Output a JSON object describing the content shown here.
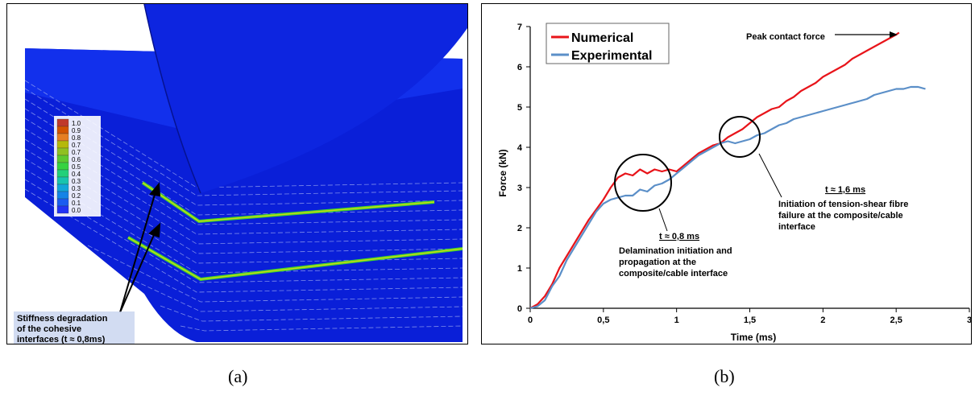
{
  "captions": {
    "a": "(a)",
    "b": "(b)"
  },
  "panel_a": {
    "legend_values": [
      "1.0",
      "0.9",
      "0.8",
      "0.7",
      "0.7",
      "0.6",
      "0.5",
      "0.4",
      "0.3",
      "0.3",
      "0.2",
      "0.1",
      "0.0"
    ],
    "legend_colors": [
      "#c0392b",
      "#d35400",
      "#e67e22",
      "#b5b80a",
      "#8fc021",
      "#5dc930",
      "#36d240",
      "#22d07a",
      "#18c4ae",
      "#12a6d8",
      "#1583e6",
      "#1b5cf0",
      "#2233f5"
    ],
    "annotation": [
      "Stiffness degradation",
      "of the cohesive",
      "interfaces (t ≈ 0,8ms)"
    ]
  },
  "chart_data": {
    "type": "line",
    "xlabel": "Time (ms)",
    "ylabel": "Force (kN)",
    "xlim": [
      0,
      3
    ],
    "ylim": [
      0,
      7
    ],
    "xticks": [
      "0",
      "0,5",
      "1",
      "1,5",
      "2",
      "2,5",
      "3"
    ],
    "yticks": [
      "0",
      "1",
      "2",
      "3",
      "4",
      "5",
      "6",
      "7"
    ],
    "grid": false,
    "legend_position": "top-left",
    "series": [
      {
        "name": "Numerical",
        "color": "#e8141a",
        "x": [
          0,
          0.05,
          0.1,
          0.15,
          0.2,
          0.25,
          0.3,
          0.35,
          0.4,
          0.45,
          0.5,
          0.55,
          0.6,
          0.65,
          0.7,
          0.75,
          0.8,
          0.85,
          0.9,
          0.95,
          1.0,
          1.05,
          1.1,
          1.15,
          1.2,
          1.25,
          1.3,
          1.35,
          1.4,
          1.45,
          1.5,
          1.55,
          1.6,
          1.65,
          1.7,
          1.75,
          1.8,
          1.85,
          1.9,
          1.95,
          2.0,
          2.05,
          2.1,
          2.15,
          2.2,
          2.25,
          2.3,
          2.35,
          2.4,
          2.45,
          2.5,
          2.52
        ],
        "y": [
          0,
          0.1,
          0.3,
          0.6,
          1.0,
          1.3,
          1.6,
          1.9,
          2.2,
          2.45,
          2.7,
          3.0,
          3.25,
          3.35,
          3.3,
          3.45,
          3.35,
          3.45,
          3.4,
          3.45,
          3.4,
          3.55,
          3.7,
          3.85,
          3.95,
          4.05,
          4.1,
          4.25,
          4.35,
          4.45,
          4.6,
          4.75,
          4.85,
          4.95,
          5.0,
          5.15,
          5.25,
          5.4,
          5.5,
          5.6,
          5.75,
          5.85,
          5.95,
          6.05,
          6.2,
          6.3,
          6.4,
          6.5,
          6.6,
          6.7,
          6.8,
          6.85
        ]
      },
      {
        "name": "Experimental",
        "color": "#5b8fc8",
        "x": [
          0,
          0.05,
          0.1,
          0.15,
          0.2,
          0.25,
          0.3,
          0.35,
          0.4,
          0.45,
          0.5,
          0.55,
          0.6,
          0.65,
          0.7,
          0.75,
          0.8,
          0.85,
          0.9,
          0.95,
          1.0,
          1.05,
          1.1,
          1.15,
          1.2,
          1.25,
          1.3,
          1.35,
          1.4,
          1.45,
          1.5,
          1.55,
          1.6,
          1.65,
          1.7,
          1.75,
          1.8,
          1.85,
          1.9,
          1.95,
          2.0,
          2.05,
          2.1,
          2.15,
          2.2,
          2.25,
          2.3,
          2.35,
          2.4,
          2.45,
          2.5,
          2.55,
          2.6,
          2.65,
          2.7
        ],
        "y": [
          0,
          0.05,
          0.2,
          0.55,
          0.8,
          1.2,
          1.5,
          1.8,
          2.1,
          2.4,
          2.6,
          2.7,
          2.75,
          2.8,
          2.8,
          2.95,
          2.9,
          3.05,
          3.1,
          3.2,
          3.35,
          3.5,
          3.65,
          3.8,
          3.9,
          4.0,
          4.1,
          4.15,
          4.1,
          4.15,
          4.2,
          4.3,
          4.35,
          4.45,
          4.55,
          4.6,
          4.7,
          4.75,
          4.8,
          4.85,
          4.9,
          4.95,
          5.0,
          5.05,
          5.1,
          5.15,
          5.2,
          5.3,
          5.35,
          5.4,
          5.45,
          5.45,
          5.5,
          5.5,
          5.45
        ]
      }
    ],
    "annotations": {
      "peak": "Peak contact force",
      "t16_title": "t ≈ 1,6 ms",
      "t16_text": [
        "Initiation of tension-shear fibre",
        "failure at the composite/cable",
        "interface"
      ],
      "t08_title": "t ≈ 0,8 ms",
      "t08_text": [
        "Delamination initiation and",
        "propagation at the",
        "composite/cable interface"
      ]
    }
  }
}
